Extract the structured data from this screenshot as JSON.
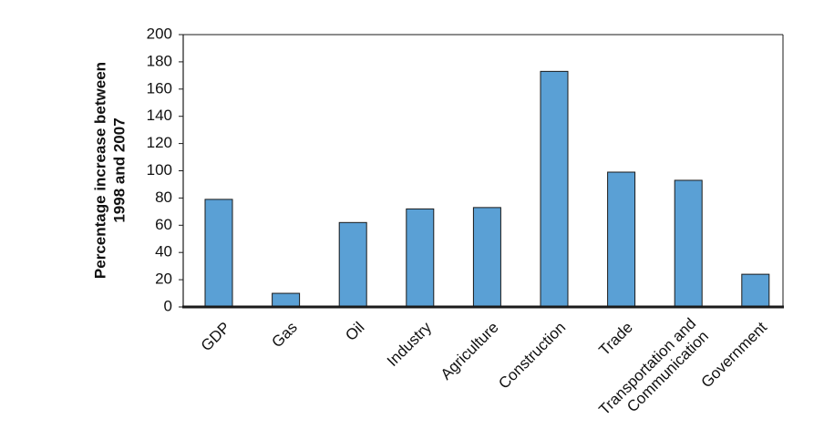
{
  "chart_data": {
    "type": "bar",
    "title": "",
    "xlabel": "",
    "ylabel_lines": [
      "Percentage increase between",
      "1998 and 2007"
    ],
    "ylim": [
      0,
      200
    ],
    "ytick_step": 20,
    "categories": [
      "GDP",
      "Gas",
      "Oil",
      "Industry",
      "Agriculture",
      "Construction",
      "Trade",
      "Transportation and\nCommunication",
      "Government"
    ],
    "values": [
      79,
      10,
      62,
      72,
      73,
      173,
      99,
      93,
      24
    ],
    "grid": false,
    "legend": "none",
    "bar_color": "#5aa0d5",
    "edge_color": "#1a1a1a"
  }
}
